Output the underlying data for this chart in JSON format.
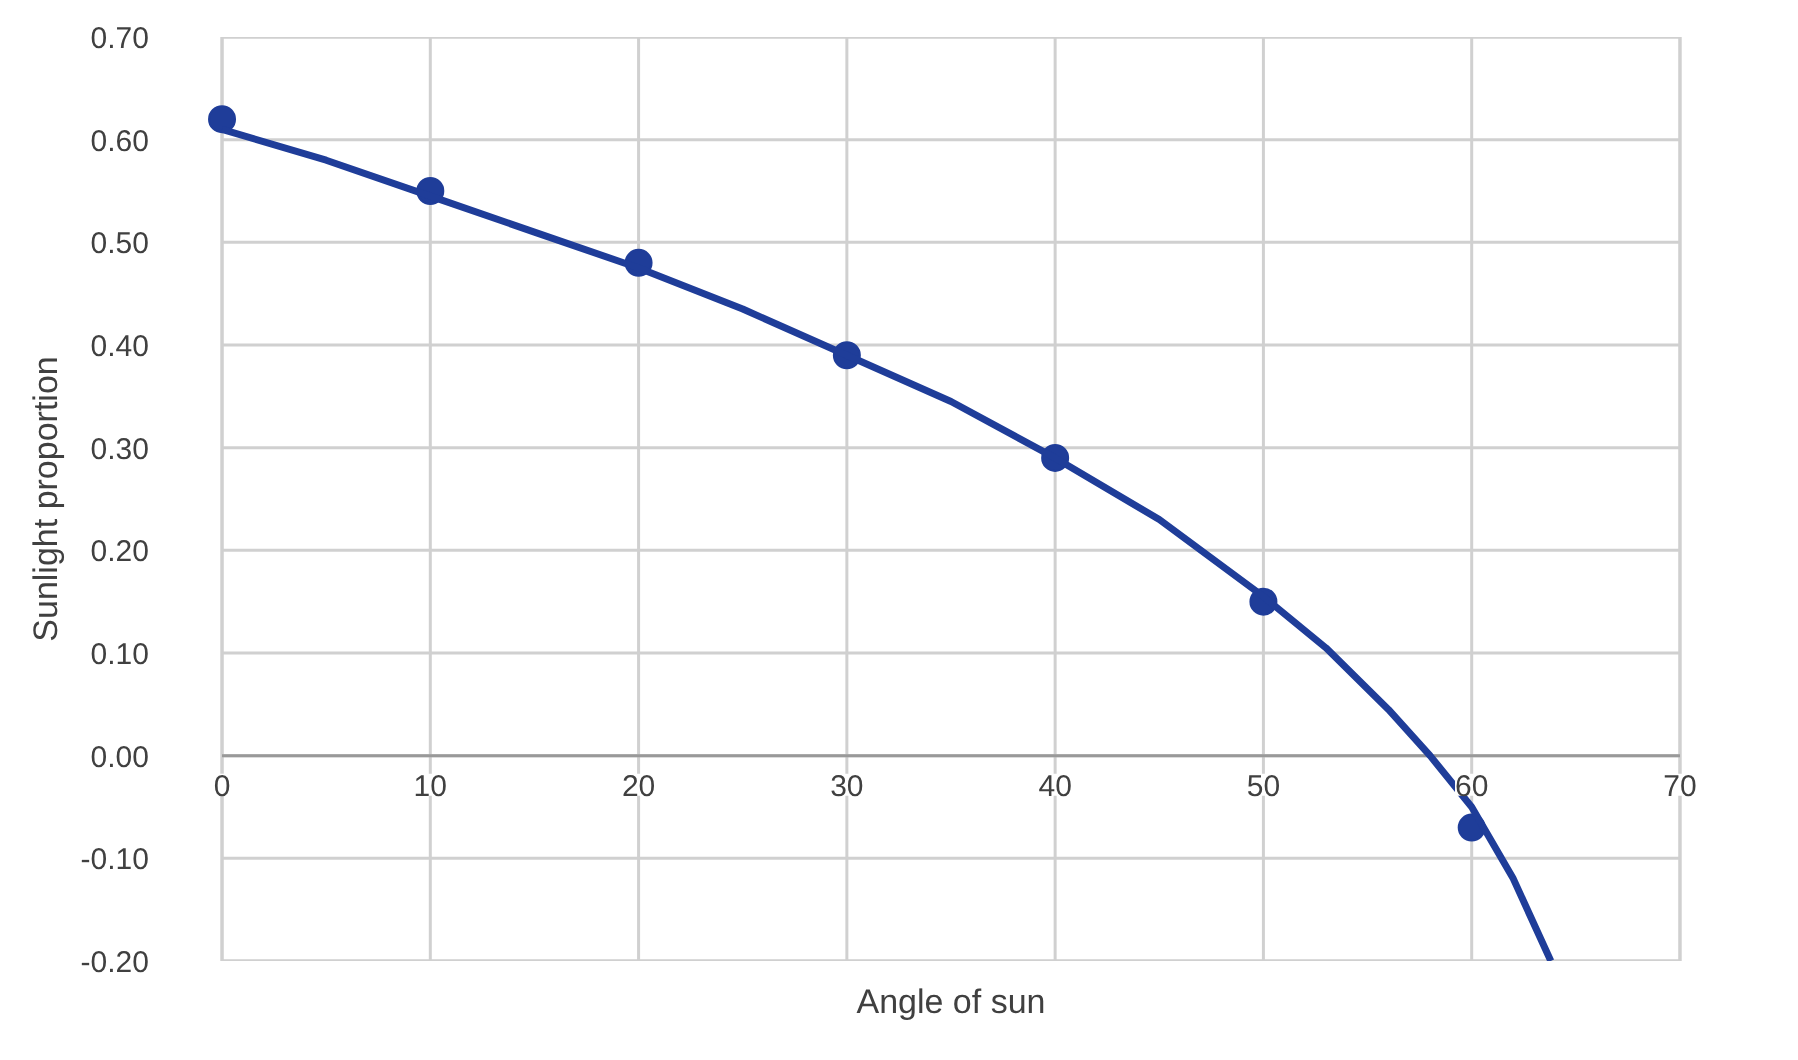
{
  "chart_data": {
    "type": "scatter",
    "xlabel": "Angle of sun",
    "ylabel": "Sunlight proportion",
    "x": [
      0,
      10,
      20,
      30,
      40,
      50,
      60
    ],
    "series": [
      {
        "type": "scatter",
        "color": "#1f3d99",
        "marker": "circle",
        "values": [
          0.62,
          0.55,
          0.48,
          0.39,
          0.29,
          0.15,
          -0.07
        ]
      },
      {
        "type": "line",
        "color": "#1f3d99",
        "marker": "none",
        "line_style": "solid",
        "x": [
          0,
          5,
          10,
          15,
          20,
          25,
          30,
          35,
          40,
          45,
          50,
          53,
          56,
          58,
          60,
          62,
          63.8
        ],
        "values": [
          0.61,
          0.58,
          0.545,
          0.51,
          0.475,
          0.435,
          0.39,
          0.345,
          0.29,
          0.23,
          0.155,
          0.105,
          0.045,
          0.0,
          -0.05,
          -0.12,
          -0.2
        ]
      }
    ],
    "xlim": [
      0,
      70
    ],
    "xticks": [
      0,
      10,
      20,
      30,
      40,
      50,
      60,
      70
    ],
    "ylim": [
      -0.2,
      0.7
    ],
    "yticks": [
      {
        "value": -0.2,
        "label": "-0.20"
      },
      {
        "value": -0.1,
        "label": "-0.10"
      },
      {
        "value": 0,
        "label": "0.00"
      },
      {
        "value": 0.1,
        "label": "0.10"
      },
      {
        "value": 0.2,
        "label": "0.20"
      },
      {
        "value": 0.3,
        "label": "0.30"
      },
      {
        "value": 0.4,
        "label": "0.40"
      },
      {
        "value": 0.5,
        "label": "0.50"
      },
      {
        "value": 0.6,
        "label": "0.60"
      },
      {
        "value": 0.7,
        "label": "0.70"
      }
    ],
    "grid": true
  }
}
